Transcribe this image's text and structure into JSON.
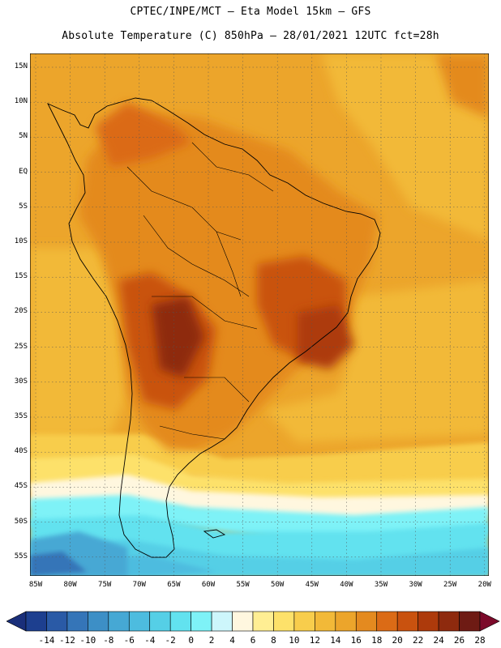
{
  "header": {
    "line1": "CPTEC/INPE/MCT —  Eta Model 15km — GFS",
    "line2": "Absolute Temperature (C) 850hPa — 28/01/2021 12UTC fct=28h"
  },
  "map": {
    "lat_labels": [
      "15N",
      "10N",
      "5N",
      "EQ",
      "5S",
      "10S",
      "15S",
      "20S",
      "25S",
      "30S",
      "35S",
      "40S",
      "45S",
      "50S",
      "55S"
    ],
    "lon_labels": [
      "85W",
      "80W",
      "75W",
      "70W",
      "65W",
      "60W",
      "55W",
      "50W",
      "45W",
      "40W",
      "35W",
      "30W",
      "25W",
      "20W"
    ],
    "grid": "dotted"
  },
  "colorbar": {
    "labels": [
      "-14",
      "-12",
      "-10",
      "-8",
      "-6",
      "-4",
      "-2",
      "0",
      "2",
      "4",
      "6",
      "8",
      "10",
      "12",
      "14",
      "16",
      "18",
      "20",
      "22",
      "24",
      "26",
      "28"
    ],
    "colors": [
      "#1d3f8f",
      "#2a5aa6",
      "#3575b8",
      "#3d8fc6",
      "#46a8d4",
      "#4dbcdf",
      "#55cfe6",
      "#62e2ef",
      "#7ef2f7",
      "#cdf6fb",
      "#fff7df",
      "#ffee93",
      "#fde16a",
      "#f8cd4c",
      "#f2b938",
      "#eca52b",
      "#e48a1f",
      "#db6b16",
      "#c9520f",
      "#ad3a0b",
      "#8e2a0e",
      "#6e1b14"
    ],
    "low_arrow_color": "#1a2f7a",
    "high_arrow_color": "#7c0a2a"
  }
}
